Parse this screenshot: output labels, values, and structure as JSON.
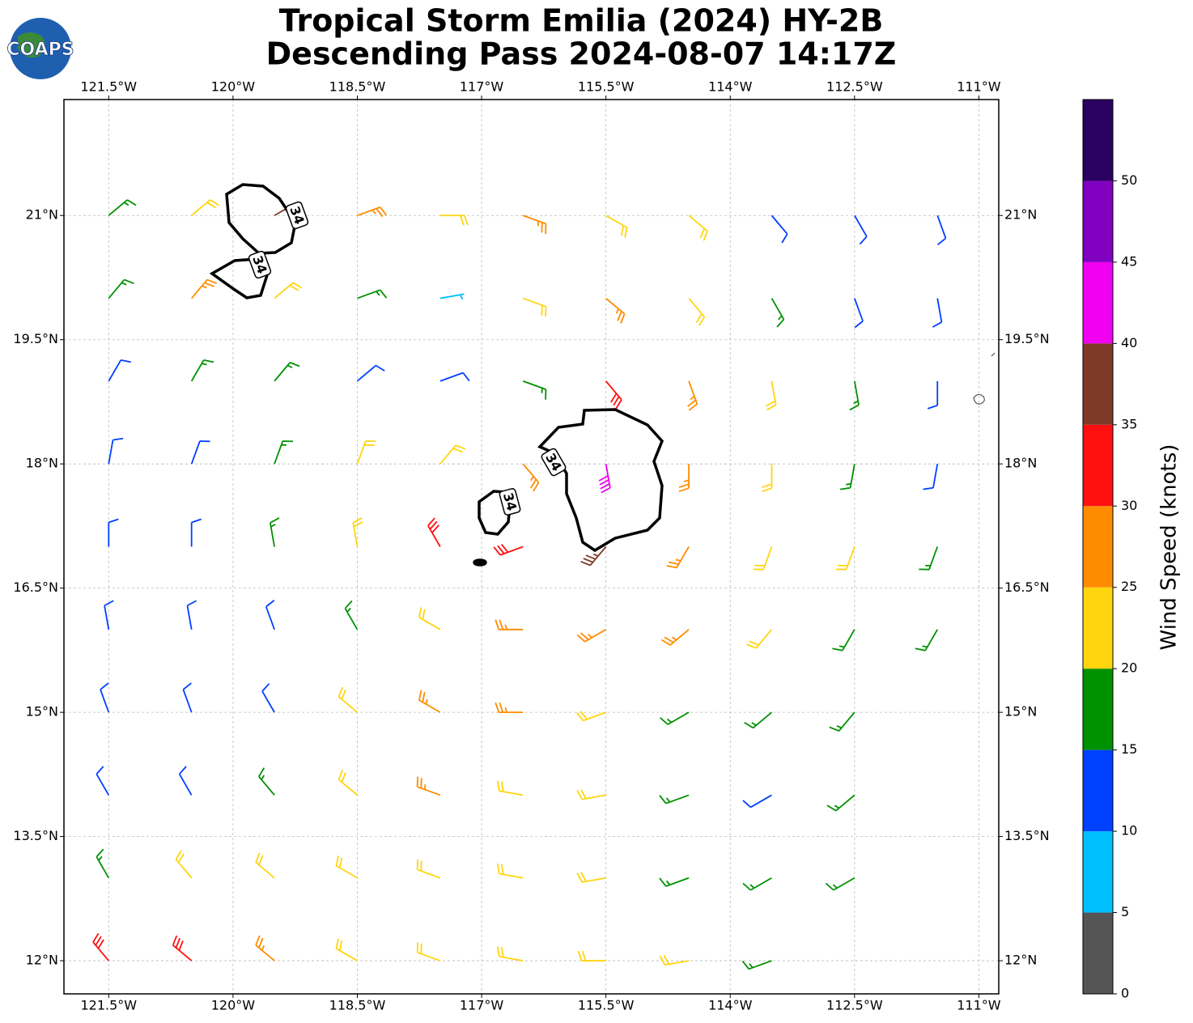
{
  "chart_data": {
    "type": "barbs",
    "title": "Tropical Storm Emilia (2024) HY-2B",
    "subtitle": "Descending Pass 2024-08-07 14:17Z",
    "logo_text": "COAPS",
    "xlim": [
      -122.04,
      -110.76
    ],
    "ylim": [
      11.6,
      22.4
    ],
    "xticks": [
      {
        "value": -121.5,
        "label": "121.5°W"
      },
      {
        "value": -120,
        "label": "120°W"
      },
      {
        "value": -118.5,
        "label": "118.5°W"
      },
      {
        "value": -117,
        "label": "117°W"
      },
      {
        "value": -115.5,
        "label": "115.5°W"
      },
      {
        "value": -114,
        "label": "114°W"
      },
      {
        "value": -112.5,
        "label": "112.5°W"
      },
      {
        "value": -111,
        "label": "111°W"
      }
    ],
    "yticks": [
      {
        "value": 12,
        "label": "12°N"
      },
      {
        "value": 13.5,
        "label": "13.5°N"
      },
      {
        "value": 15,
        "label": "15°N"
      },
      {
        "value": 16.5,
        "label": "16.5°N"
      },
      {
        "value": 18,
        "label": "18°N"
      },
      {
        "value": 19.5,
        "label": "19.5°N"
      },
      {
        "value": 21,
        "label": "21°N"
      }
    ],
    "grid": true,
    "lons": [
      -121.5,
      -120.5,
      -119.5,
      -118.5,
      -117.5,
      -116.5,
      -115.5,
      -114.5,
      -113.5,
      -112.5,
      -111.5
    ],
    "lats": [
      21,
      20,
      19,
      18,
      17,
      16,
      15,
      14,
      13,
      12
    ],
    "speed": [
      [
        17,
        22,
        38,
        27,
        23,
        26,
        23,
        22,
        14,
        12,
        11
      ],
      [
        15,
        27,
        21,
        17,
        8,
        22,
        26,
        23,
        18,
        13,
        12
      ],
      [
        13,
        17,
        18,
        14,
        12,
        18,
        32,
        28,
        22,
        17,
        13
      ],
      [
        12,
        14,
        16,
        21,
        22,
        27,
        42,
        27,
        22,
        17,
        14
      ],
      [
        12,
        13,
        16,
        21,
        31,
        33,
        36,
        28,
        24,
        21,
        17
      ],
      [
        11,
        12,
        14,
        18,
        24,
        28,
        29,
        26,
        22,
        19,
        16
      ],
      [
        11,
        12,
        13,
        22,
        26,
        27,
        24,
        19,
        17,
        16,
        null
      ],
      [
        12,
        13,
        18,
        24,
        27,
        23,
        21,
        18,
        14,
        16,
        null
      ],
      [
        16,
        22,
        24,
        22,
        23,
        22,
        21,
        18,
        17,
        16,
        null
      ],
      [
        31,
        32,
        27,
        23,
        22,
        21,
        21,
        20,
        18,
        null,
        null
      ]
    ],
    "direction": [
      [
        50,
        50,
        60,
        70,
        90,
        110,
        120,
        130,
        140,
        150,
        160
      ],
      [
        40,
        40,
        50,
        70,
        80,
        110,
        130,
        140,
        150,
        160,
        170
      ],
      [
        30,
        30,
        40,
        50,
        70,
        110,
        140,
        160,
        170,
        170,
        180
      ],
      [
        10,
        20,
        20,
        20,
        40,
        140,
        170,
        180,
        180,
        190,
        190
      ],
      [
        0,
        0,
        350,
        350,
        330,
        250,
        220,
        210,
        200,
        200,
        200
      ],
      [
        350,
        350,
        340,
        330,
        300,
        270,
        240,
        230,
        220,
        210,
        210
      ],
      [
        340,
        340,
        330,
        310,
        300,
        270,
        250,
        240,
        230,
        220,
        null
      ],
      [
        330,
        330,
        320,
        310,
        290,
        280,
        260,
        250,
        240,
        230,
        null
      ],
      [
        330,
        320,
        310,
        300,
        290,
        280,
        260,
        250,
        240,
        240,
        null
      ],
      [
        320,
        310,
        310,
        300,
        290,
        280,
        270,
        260,
        250,
        null,
        null
      ]
    ],
    "contour_labels": [
      34,
      34,
      34,
      34
    ],
    "colorbar": {
      "label": "Wind Speed (knots)",
      "lim": [
        0,
        55
      ],
      "bounds": [
        0,
        5,
        10,
        15,
        20,
        25,
        30,
        35,
        40,
        45,
        50,
        55
      ],
      "colors": [
        "#555555",
        "#00bfff",
        "#0040ff",
        "#009100",
        "#ffd510",
        "#ff8c00",
        "#ff1010",
        "#7f3a27",
        "#f000f0",
        "#8000c0",
        "#2a0060"
      ],
      "ticks": [
        0,
        5,
        10,
        15,
        20,
        25,
        30,
        35,
        40,
        45,
        50
      ]
    }
  }
}
